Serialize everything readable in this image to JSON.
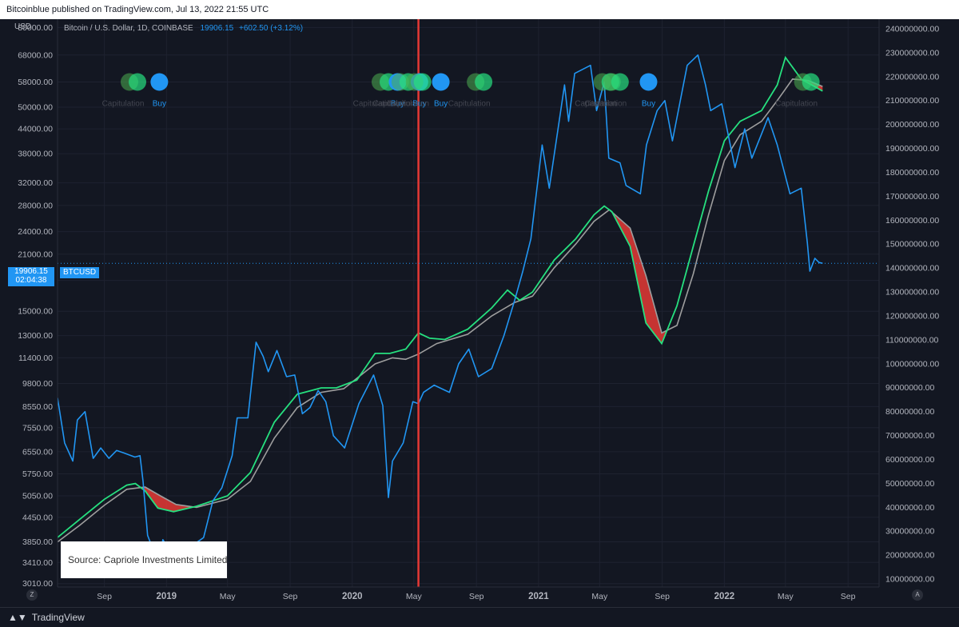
{
  "header": {
    "publish_text": "Bitcoinblue published on TradingView.com, Jul 13, 2022 21:55 UTC"
  },
  "legend": {
    "symbol": "Bitcoin / U.S. Dollar, 1D, COINBASE",
    "price": "19906.15",
    "change": "+602.50 (+3.12%)"
  },
  "price_tag": {
    "value": "19906.15",
    "countdown": "02:04:38",
    "series": "BTCUSD"
  },
  "source_note": "Source: Capriole Investments Limited",
  "footer": {
    "brand": "TradingView",
    "left_button": "Z",
    "right_button": "A"
  },
  "colors": {
    "background": "#131722",
    "price_line": "#2196f3",
    "fast_line": "#26e07f",
    "slow_line": "#9e9e9e",
    "fill_bear": "#e53935",
    "marker_line": "#e53935"
  },
  "chart_data": {
    "type": "line",
    "left_axis_unit": "USD",
    "left_axis_scale": "log",
    "left_ticks": [
      80000,
      68000,
      58000,
      50000,
      44000,
      38000,
      32000,
      28000,
      24000,
      21000,
      18000,
      15000,
      13000,
      11400,
      9800,
      8550,
      7550,
      6550,
      5750,
      5050,
      4450,
      3850,
      3410,
      3010
    ],
    "left_tick_labels": [
      "80000.00",
      "68000.00",
      "58000.00",
      "50000.00",
      "44000.00",
      "38000.00",
      "32000.00",
      "28000.00",
      "24000.00",
      "21000.00",
      "18000.00",
      "15000.00",
      "13000.00",
      "11400.00",
      "9800.00",
      "8550.00",
      "7550.00",
      "6550.00",
      "5750.00",
      "5050.00",
      "4450.00",
      "3850.00",
      "3410.00",
      "3010.00"
    ],
    "right_ticks": [
      240000000,
      230000000,
      220000000,
      210000000,
      200000000,
      190000000,
      180000000,
      170000000,
      160000000,
      150000000,
      140000000,
      130000000,
      120000000,
      110000000,
      100000000,
      90000000,
      80000000,
      70000000,
      60000000,
      50000000,
      40000000,
      30000000,
      20000000,
      10000000
    ],
    "right_tick_labels": [
      "240000000.00",
      "230000000.00",
      "220000000.00",
      "210000000.00",
      "200000000.00",
      "190000000.00",
      "180000000.00",
      "170000000.00",
      "160000000.00",
      "150000000.00",
      "140000000.00",
      "130000000.00",
      "120000000.00",
      "110000000.00",
      "100000000.00",
      "90000000.00",
      "80000000.00",
      "70000000.00",
      "60000000.00",
      "50000000.00",
      "40000000.00",
      "30000000.00",
      "20000000.00",
      "10000000.00"
    ],
    "x_ticks": [
      {
        "date": "2018-09-01",
        "label": "Sep"
      },
      {
        "date": "2019-01-01",
        "label": "2019"
      },
      {
        "date": "2019-05-01",
        "label": "May"
      },
      {
        "date": "2019-09-01",
        "label": "Sep"
      },
      {
        "date": "2020-01-01",
        "label": "2020"
      },
      {
        "date": "2020-05-01",
        "label": "May"
      },
      {
        "date": "2020-09-01",
        "label": "Sep"
      },
      {
        "date": "2021-01-01",
        "label": "2021"
      },
      {
        "date": "2021-05-01",
        "label": "May"
      },
      {
        "date": "2021-09-01",
        "label": "Sep"
      },
      {
        "date": "2022-01-01",
        "label": "2022"
      },
      {
        "date": "2022-05-01",
        "label": "May"
      },
      {
        "date": "2022-09-01",
        "label": "Sep"
      }
    ],
    "x_range": [
      "2018-06-01",
      "2022-11-01"
    ],
    "price_ylim": [
      2950,
      84000
    ],
    "marker_date": "2020-05-10",
    "series": [
      {
        "role": "price",
        "points": [
          [
            "2018-06-01",
            9000
          ],
          [
            "2018-06-15",
            6900
          ],
          [
            "2018-07-01",
            6200
          ],
          [
            "2018-07-10",
            7900
          ],
          [
            "2018-07-25",
            8300
          ],
          [
            "2018-08-10",
            6300
          ],
          [
            "2018-08-25",
            6700
          ],
          [
            "2018-09-10",
            6300
          ],
          [
            "2018-09-25",
            6600
          ],
          [
            "2018-10-10",
            6500
          ],
          [
            "2018-10-31",
            6350
          ],
          [
            "2018-11-10",
            6400
          ],
          [
            "2018-11-16",
            5500
          ],
          [
            "2018-11-25",
            4000
          ],
          [
            "2018-12-05",
            3700
          ],
          [
            "2018-12-15",
            3300
          ],
          [
            "2018-12-25",
            3900
          ],
          [
            "2019-01-10",
            3600
          ],
          [
            "2019-01-25",
            3550
          ],
          [
            "2019-02-10",
            3600
          ],
          [
            "2019-02-25",
            3800
          ],
          [
            "2019-03-15",
            3950
          ],
          [
            "2019-04-02",
            4900
          ],
          [
            "2019-04-20",
            5300
          ],
          [
            "2019-05-10",
            6400
          ],
          [
            "2019-05-20",
            8000
          ],
          [
            "2019-06-10",
            8000
          ],
          [
            "2019-06-26",
            12500
          ],
          [
            "2019-07-10",
            11500
          ],
          [
            "2019-07-20",
            10500
          ],
          [
            "2019-08-06",
            11900
          ],
          [
            "2019-08-25",
            10200
          ],
          [
            "2019-09-10",
            10300
          ],
          [
            "2019-09-25",
            8200
          ],
          [
            "2019-10-10",
            8500
          ],
          [
            "2019-10-26",
            9400
          ],
          [
            "2019-11-10",
            8800
          ],
          [
            "2019-11-25",
            7200
          ],
          [
            "2019-12-17",
            6700
          ],
          [
            "2020-01-14",
            8700
          ],
          [
            "2020-02-12",
            10300
          ],
          [
            "2020-03-01",
            8600
          ],
          [
            "2020-03-12",
            5000
          ],
          [
            "2020-03-20",
            6200
          ],
          [
            "2020-04-10",
            6900
          ],
          [
            "2020-04-29",
            8800
          ],
          [
            "2020-05-10",
            8700
          ],
          [
            "2020-05-20",
            9300
          ],
          [
            "2020-06-10",
            9700
          ],
          [
            "2020-07-10",
            9300
          ],
          [
            "2020-07-28",
            11000
          ],
          [
            "2020-08-17",
            12000
          ],
          [
            "2020-09-05",
            10200
          ],
          [
            "2020-10-01",
            10700
          ],
          [
            "2020-10-25",
            13000
          ],
          [
            "2020-11-15",
            16000
          ],
          [
            "2020-12-01",
            19000
          ],
          [
            "2020-12-17",
            23000
          ],
          [
            "2021-01-08",
            40000
          ],
          [
            "2021-01-22",
            31000
          ],
          [
            "2021-02-21",
            57000
          ],
          [
            "2021-03-01",
            46000
          ],
          [
            "2021-03-13",
            61000
          ],
          [
            "2021-04-13",
            64000
          ],
          [
            "2021-04-25",
            49000
          ],
          [
            "2021-05-10",
            58000
          ],
          [
            "2021-05-19",
            37000
          ],
          [
            "2021-06-10",
            36000
          ],
          [
            "2021-06-22",
            31500
          ],
          [
            "2021-07-20",
            30000
          ],
          [
            "2021-08-01",
            40000
          ],
          [
            "2021-08-22",
            49000
          ],
          [
            "2021-09-06",
            52000
          ],
          [
            "2021-09-21",
            41000
          ],
          [
            "2021-10-20",
            64000
          ],
          [
            "2021-11-10",
            68000
          ],
          [
            "2021-11-25",
            57000
          ],
          [
            "2021-12-05",
            49000
          ],
          [
            "2021-12-27",
            51000
          ],
          [
            "2022-01-22",
            35000
          ],
          [
            "2022-02-10",
            44000
          ],
          [
            "2022-02-24",
            37000
          ],
          [
            "2022-03-28",
            47000
          ],
          [
            "2022-04-15",
            40000
          ],
          [
            "2022-05-10",
            30000
          ],
          [
            "2022-06-01",
            31000
          ],
          [
            "2022-06-13",
            22500
          ],
          [
            "2022-06-18",
            19000
          ],
          [
            "2022-06-28",
            20500
          ],
          [
            "2022-07-06",
            20000
          ],
          [
            "2022-07-13",
            19906
          ]
        ]
      },
      {
        "role": "fast_average",
        "points": [
          [
            "2018-06-01",
            3950
          ],
          [
            "2018-07-15",
            4400
          ],
          [
            "2018-09-01",
            4950
          ],
          [
            "2018-10-15",
            5380
          ],
          [
            "2018-11-01",
            5430
          ],
          [
            "2018-11-20",
            5200
          ],
          [
            "2018-12-15",
            4700
          ],
          [
            "2019-01-15",
            4600
          ],
          [
            "2019-03-01",
            4750
          ],
          [
            "2019-05-01",
            5050
          ],
          [
            "2019-06-15",
            5800
          ],
          [
            "2019-08-01",
            7800
          ],
          [
            "2019-09-15",
            9200
          ],
          [
            "2019-11-01",
            9550
          ],
          [
            "2019-12-01",
            9550
          ],
          [
            "2020-01-10",
            10000
          ],
          [
            "2020-02-15",
            11700
          ],
          [
            "2020-03-15",
            11700
          ],
          [
            "2020-04-15",
            12000
          ],
          [
            "2020-05-10",
            13200
          ],
          [
            "2020-06-01",
            12800
          ],
          [
            "2020-07-01",
            12700
          ],
          [
            "2020-08-15",
            13500
          ],
          [
            "2020-10-01",
            15300
          ],
          [
            "2020-11-01",
            17000
          ],
          [
            "2020-11-25",
            16000
          ],
          [
            "2020-12-20",
            16800
          ],
          [
            "2021-02-01",
            20300
          ],
          [
            "2021-03-15",
            23000
          ],
          [
            "2021-04-20",
            26500
          ],
          [
            "2021-05-10",
            27900
          ],
          [
            "2021-05-25",
            27000
          ],
          [
            "2021-06-30",
            22000
          ],
          [
            "2021-07-31",
            14000
          ],
          [
            "2021-08-31",
            12400
          ],
          [
            "2021-09-30",
            15500
          ],
          [
            "2021-11-01",
            22000
          ],
          [
            "2021-12-01",
            30500
          ],
          [
            "2022-01-01",
            41000
          ],
          [
            "2022-02-01",
            46000
          ],
          [
            "2022-03-15",
            49000
          ],
          [
            "2022-04-15",
            57000
          ],
          [
            "2022-05-01",
            67000
          ],
          [
            "2022-06-01",
            59000
          ],
          [
            "2022-07-13",
            55000
          ]
        ]
      },
      {
        "role": "slow_average",
        "points": [
          [
            "2018-06-01",
            3850
          ],
          [
            "2018-07-15",
            4250
          ],
          [
            "2018-09-01",
            4780
          ],
          [
            "2018-10-15",
            5250
          ],
          [
            "2018-11-20",
            5320
          ],
          [
            "2018-12-20",
            5050
          ],
          [
            "2019-01-20",
            4800
          ],
          [
            "2019-03-01",
            4720
          ],
          [
            "2019-05-01",
            4950
          ],
          [
            "2019-06-15",
            5500
          ],
          [
            "2019-08-01",
            7100
          ],
          [
            "2019-09-15",
            8500
          ],
          [
            "2019-11-01",
            9300
          ],
          [
            "2019-12-15",
            9500
          ],
          [
            "2020-02-15",
            11000
          ],
          [
            "2020-03-20",
            11400
          ],
          [
            "2020-04-15",
            11300
          ],
          [
            "2020-05-10",
            11650
          ],
          [
            "2020-06-15",
            12400
          ],
          [
            "2020-08-15",
            13100
          ],
          [
            "2020-10-01",
            14600
          ],
          [
            "2020-11-15",
            15800
          ],
          [
            "2020-12-20",
            16400
          ],
          [
            "2021-02-01",
            19400
          ],
          [
            "2021-03-15",
            22300
          ],
          [
            "2021-04-20",
            25500
          ],
          [
            "2021-05-20",
            27300
          ],
          [
            "2021-06-30",
            24500
          ],
          [
            "2021-07-31",
            18500
          ],
          [
            "2021-08-31",
            13200
          ],
          [
            "2021-09-30",
            13800
          ],
          [
            "2021-11-01",
            18700
          ],
          [
            "2021-12-01",
            26500
          ],
          [
            "2022-01-01",
            36500
          ],
          [
            "2022-02-01",
            42500
          ],
          [
            "2022-03-15",
            46000
          ],
          [
            "2022-04-15",
            52000
          ],
          [
            "2022-05-15",
            59000
          ],
          [
            "2022-06-15",
            58500
          ],
          [
            "2022-07-13",
            56500
          ]
        ]
      }
    ],
    "signal_dots": [
      {
        "date": "2018-11-05",
        "kind": "capitulation",
        "label": "Capitulation"
      },
      {
        "date": "2018-12-18",
        "kind": "buy",
        "label": "Buy"
      },
      {
        "date": "2020-03-12",
        "kind": "capitulation",
        "label": "Capitulation"
      },
      {
        "date": "2020-03-30",
        "kind": "buy",
        "label": "Buy"
      },
      {
        "date": "2020-04-20",
        "kind": "capitulation",
        "label": "Capitulation"
      },
      {
        "date": "2020-05-12",
        "kind": "buy",
        "label": "Buy"
      },
      {
        "date": "2020-05-18",
        "kind": "capitulation",
        "label": "Capitulation"
      },
      {
        "date": "2020-06-23",
        "kind": "buy",
        "label": "Buy"
      },
      {
        "date": "2020-09-15",
        "kind": "capitulation",
        "label": "Capitulation"
      },
      {
        "date": "2021-05-22",
        "kind": "capitulation",
        "label": "Capitulation"
      },
      {
        "date": "2021-06-10",
        "kind": "capitulation",
        "label": "Capitulation"
      },
      {
        "date": "2021-08-05",
        "kind": "buy",
        "label": "Buy"
      },
      {
        "date": "2022-06-20",
        "kind": "capitulation",
        "label": "Capitulation"
      }
    ],
    "signal_level": 58000
  }
}
